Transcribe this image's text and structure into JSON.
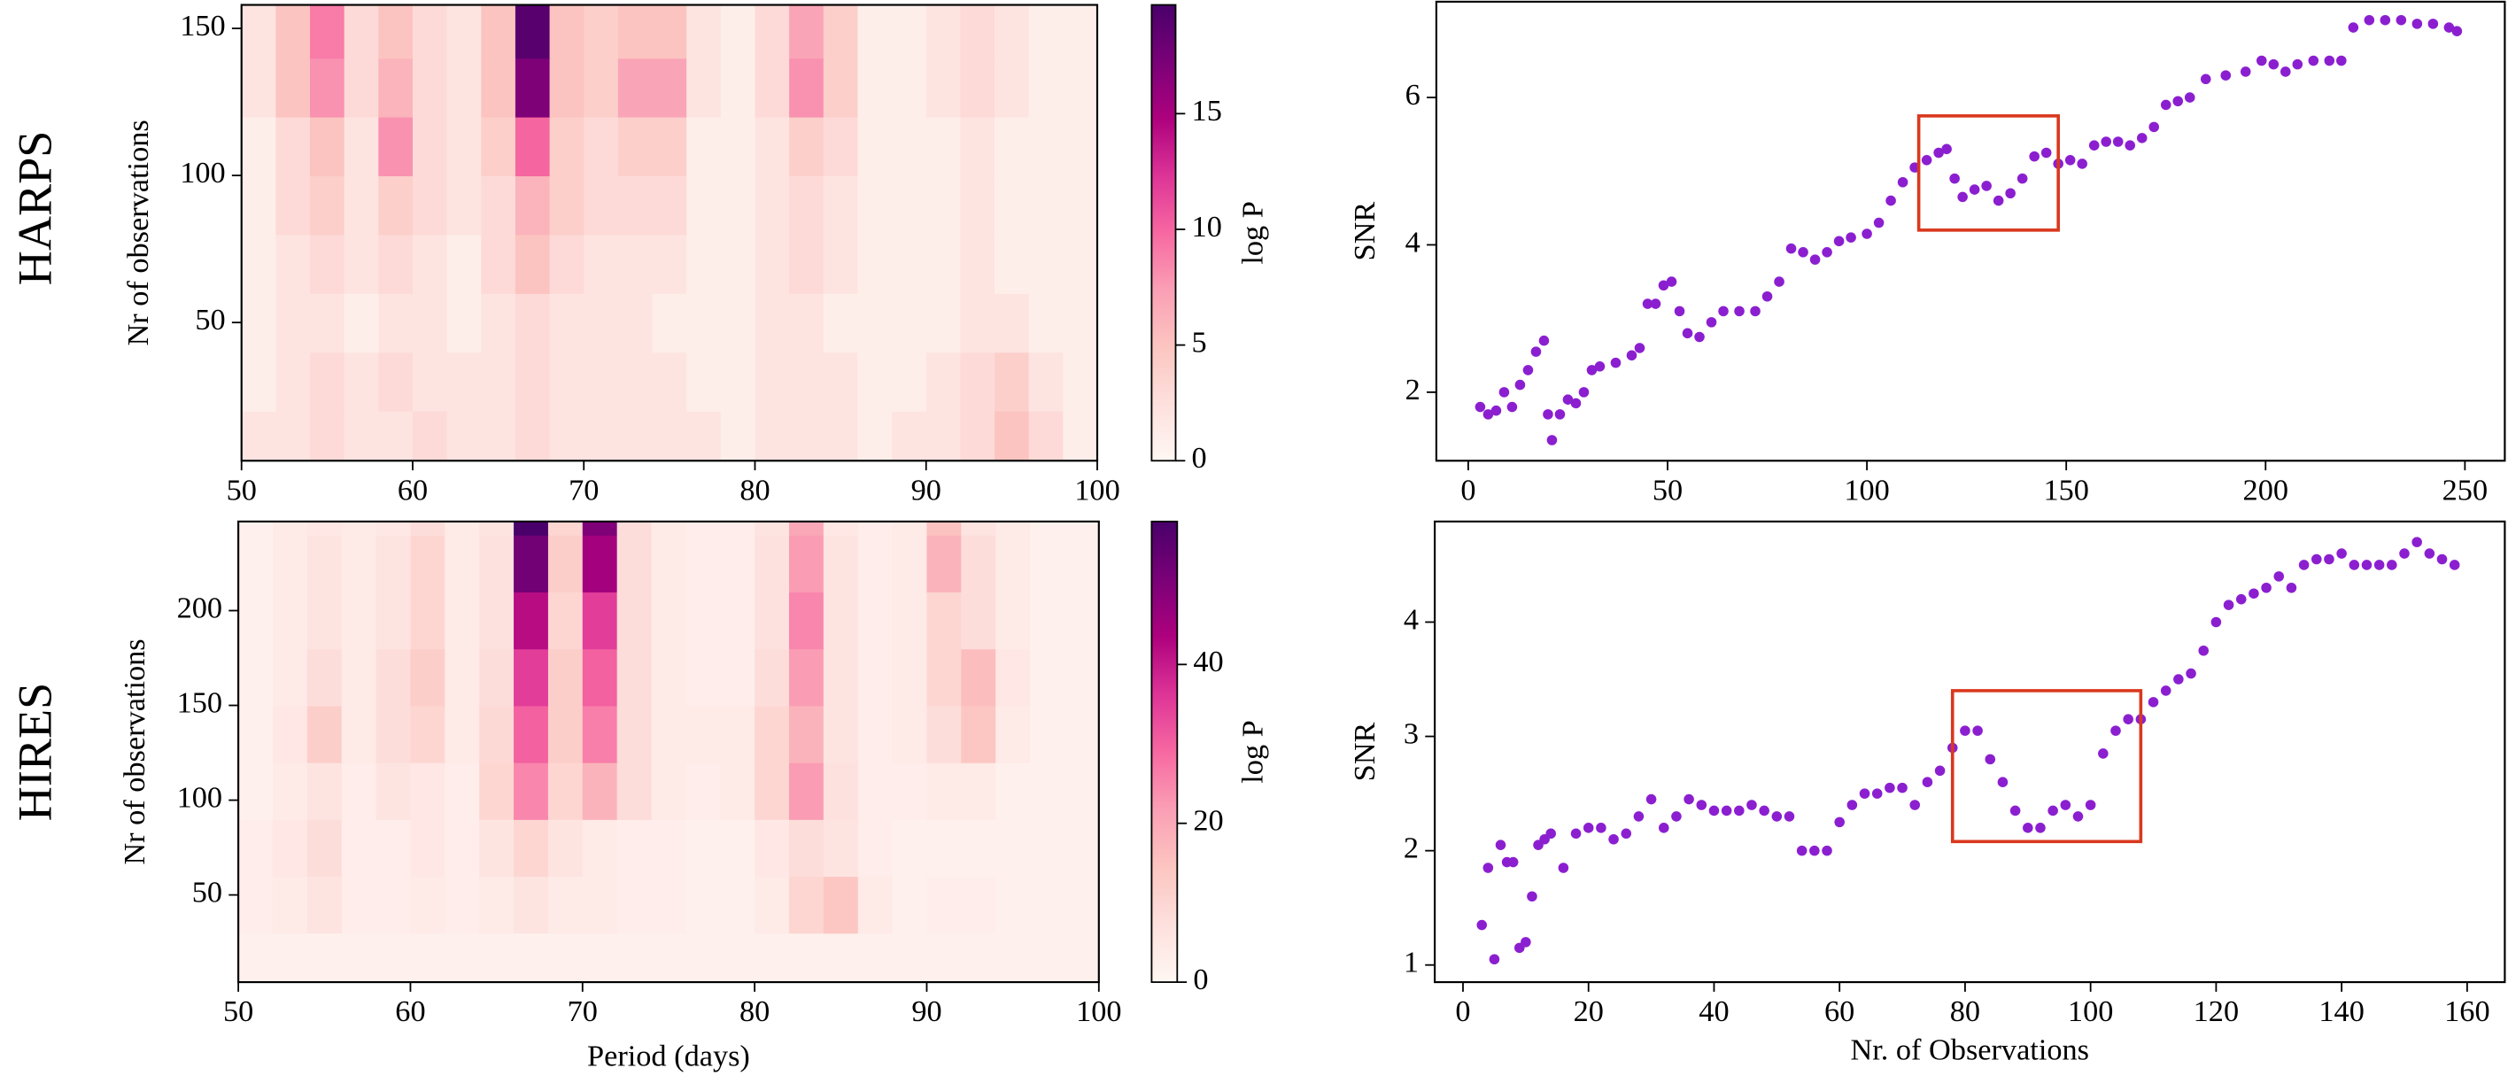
{
  "panel_labels": [
    "HARPS",
    "HIRES"
  ],
  "chart_data": [
    {
      "type": "heatmap",
      "ylabel": "Nr of observations",
      "colorbar_label": "log P",
      "x": [
        51,
        53,
        55,
        57,
        59,
        61,
        63,
        65,
        67,
        69,
        71,
        73,
        75,
        77,
        79,
        81,
        83,
        85,
        87,
        89,
        91,
        93,
        95,
        97,
        99
      ],
      "y": [
        10,
        30,
        50,
        70,
        90,
        110,
        130,
        150
      ],
      "z": [
        [
          2,
          2,
          3,
          2,
          2,
          3,
          2,
          2,
          3,
          2,
          2,
          2,
          2,
          2,
          1,
          2,
          2,
          2,
          1,
          2,
          2,
          3,
          5,
          3,
          1
        ],
        [
          1,
          2,
          3,
          2,
          3,
          2,
          2,
          2,
          3,
          2,
          2,
          2,
          2,
          1,
          1,
          2,
          2,
          2,
          1,
          1,
          2,
          3,
          4,
          2,
          1
        ],
        [
          1,
          2,
          2,
          1,
          2,
          2,
          1,
          2,
          3,
          2,
          2,
          2,
          1,
          1,
          1,
          2,
          2,
          1,
          1,
          1,
          1,
          2,
          2,
          1,
          1
        ],
        [
          1,
          2,
          3,
          2,
          3,
          2,
          1,
          3,
          5,
          3,
          2,
          2,
          2,
          1,
          1,
          2,
          3,
          2,
          1,
          1,
          1,
          2,
          1,
          1,
          1
        ],
        [
          1,
          3,
          4,
          2,
          4,
          3,
          2,
          3,
          6,
          4,
          3,
          3,
          3,
          1,
          1,
          2,
          3,
          2,
          1,
          1,
          1,
          2,
          1,
          1,
          1
        ],
        [
          1,
          3,
          5,
          2,
          8,
          3,
          2,
          4,
          10,
          4,
          3,
          4,
          4,
          1,
          1,
          2,
          4,
          3,
          1,
          1,
          1,
          2,
          1,
          1,
          1
        ],
        [
          2,
          5,
          8,
          3,
          6,
          3,
          2,
          5,
          17,
          5,
          4,
          7,
          7,
          2,
          1,
          3,
          8,
          4,
          1,
          1,
          2,
          3,
          2,
          1,
          1
        ],
        [
          2,
          5,
          9,
          3,
          5,
          3,
          2,
          5,
          19,
          5,
          4,
          5,
          5,
          2,
          1,
          3,
          7,
          4,
          1,
          1,
          2,
          3,
          2,
          1,
          1
        ]
      ],
      "xlim": [
        50,
        100
      ],
      "xticks": [
        50,
        60,
        70,
        80,
        90,
        100
      ],
      "ylim": [
        3,
        158
      ],
      "yticks": [
        50,
        100,
        150
      ],
      "clim": [
        0,
        19.7
      ],
      "cticks": [
        0,
        5,
        10,
        15
      ],
      "colormap": [
        "#fff7f3",
        "#fde0dd",
        "#fcc5c0",
        "#fa9fb5",
        "#f768a1",
        "#dd3497",
        "#ae017e",
        "#7a0177",
        "#49006a"
      ]
    },
    {
      "type": "heatmap",
      "xlabel": "Period (days)",
      "ylabel": "Nr of observations",
      "colorbar_label": "log P",
      "x": [
        51,
        53,
        55,
        57,
        59,
        61,
        63,
        65,
        67,
        69,
        71,
        73,
        75,
        77,
        79,
        81,
        83,
        85,
        87,
        89,
        91,
        93,
        95,
        97,
        99
      ],
      "y": [
        15,
        45,
        75,
        105,
        135,
        165,
        195,
        225,
        255
      ],
      "z": [
        [
          2,
          2,
          2,
          2,
          2,
          2,
          2,
          2,
          2,
          2,
          2,
          2,
          2,
          2,
          2,
          2,
          2,
          2,
          2,
          2,
          2,
          2,
          2,
          2,
          2
        ],
        [
          3,
          4,
          6,
          3,
          3,
          4,
          3,
          4,
          6,
          4,
          4,
          3,
          3,
          2,
          2,
          4,
          10,
          14,
          4,
          2,
          3,
          3,
          2,
          2,
          2
        ],
        [
          3,
          5,
          8,
          3,
          3,
          5,
          3,
          6,
          10,
          6,
          4,
          3,
          3,
          2,
          2,
          5,
          8,
          6,
          3,
          2,
          2,
          2,
          2,
          2,
          2
        ],
        [
          2,
          4,
          6,
          3,
          6,
          5,
          3,
          10,
          25,
          10,
          18,
          8,
          4,
          3,
          4,
          10,
          22,
          7,
          3,
          3,
          4,
          4,
          2,
          2,
          2
        ],
        [
          2,
          5,
          12,
          4,
          8,
          10,
          4,
          9,
          30,
          12,
          26,
          8,
          4,
          4,
          4,
          10,
          18,
          6,
          3,
          4,
          8,
          14,
          4,
          2,
          2
        ],
        [
          2,
          4,
          8,
          4,
          8,
          12,
          4,
          8,
          35,
          12,
          30,
          8,
          4,
          3,
          3,
          8,
          22,
          6,
          3,
          4,
          10,
          16,
          5,
          2,
          2
        ],
        [
          2,
          4,
          6,
          4,
          6,
          10,
          4,
          7,
          42,
          10,
          35,
          8,
          4,
          3,
          3,
          7,
          25,
          6,
          3,
          4,
          10,
          8,
          4,
          2,
          2
        ],
        [
          2,
          4,
          6,
          4,
          6,
          10,
          4,
          7,
          52,
          12,
          45,
          8,
          4,
          3,
          3,
          7,
          22,
          6,
          3,
          4,
          18,
          8,
          4,
          2,
          2
        ],
        [
          2,
          4,
          5,
          4,
          5,
          8,
          4,
          6,
          58,
          10,
          50,
          8,
          4,
          3,
          3,
          6,
          20,
          5,
          3,
          4,
          15,
          6,
          4,
          2,
          2
        ]
      ],
      "xlim": [
        50,
        100
      ],
      "xticks": [
        50,
        60,
        70,
        80,
        90,
        100
      ],
      "ylim": [
        4,
        247
      ],
      "yticks": [
        50,
        100,
        150,
        200
      ],
      "clim": [
        0,
        58
      ],
      "cticks": [
        0,
        20,
        40
      ],
      "colormap": [
        "#fff7f3",
        "#fde0dd",
        "#fcc5c0",
        "#fa9fb5",
        "#f768a1",
        "#dd3497",
        "#ae017e",
        "#7a0177",
        "#49006a"
      ]
    },
    {
      "type": "scatter",
      "ylabel": "SNR",
      "color": "#8b1fd0",
      "x": [
        3,
        5,
        7,
        9,
        11,
        13,
        15,
        17,
        19,
        20,
        21,
        23,
        25,
        27,
        29,
        31,
        33,
        37,
        41,
        43,
        45,
        47,
        49,
        51,
        53,
        55,
        58,
        61,
        64,
        68,
        72,
        75,
        78,
        81,
        84,
        87,
        90,
        93,
        96,
        100,
        103,
        106,
        109,
        112,
        115,
        118,
        120,
        122,
        124,
        127,
        130,
        133,
        136,
        139,
        142,
        145,
        148,
        151,
        154,
        157,
        160,
        163,
        166,
        169,
        172,
        175,
        178,
        181,
        185,
        190,
        195,
        199,
        202,
        205,
        208,
        212,
        216,
        219,
        222,
        226,
        230,
        234,
        238,
        242,
        246,
        248
      ],
      "values": [
        1.8,
        1.7,
        1.75,
        2.0,
        1.8,
        2.1,
        2.3,
        2.55,
        2.7,
        1.7,
        1.35,
        1.7,
        1.9,
        1.85,
        2.0,
        2.3,
        2.35,
        2.4,
        2.5,
        2.6,
        3.2,
        3.2,
        3.45,
        3.5,
        3.1,
        2.8,
        2.75,
        2.95,
        3.1,
        3.1,
        3.1,
        3.3,
        3.5,
        3.95,
        3.9,
        3.8,
        3.9,
        4.05,
        4.1,
        4.15,
        4.3,
        4.6,
        4.85,
        5.05,
        5.15,
        5.25,
        5.3,
        4.9,
        4.65,
        4.75,
        4.8,
        4.6,
        4.7,
        4.9,
        5.2,
        5.25,
        5.1,
        5.15,
        5.1,
        5.35,
        5.4,
        5.4,
        5.35,
        5.45,
        5.6,
        5.9,
        5.95,
        6.0,
        6.25,
        6.3,
        6.35,
        6.5,
        6.45,
        6.35,
        6.45,
        6.5,
        6.5,
        6.5,
        6.95,
        7.05,
        7.05,
        7.05,
        7.0,
        7.0,
        6.95,
        6.9
      ],
      "xlim": [
        -8,
        260
      ],
      "xticks": [
        0,
        50,
        100,
        150,
        200,
        250
      ],
      "ylim": [
        1.07,
        7.3
      ],
      "yticks": [
        2,
        4,
        6
      ],
      "highlight": {
        "color": "#d9381e",
        "x": [
          113,
          148
        ],
        "y": [
          4.2,
          5.75
        ]
      }
    },
    {
      "type": "scatter",
      "xlabel": "Nr. of Observations",
      "ylabel": "SNR",
      "color": "#8b1fd0",
      "x": [
        3,
        4,
        5,
        6,
        7,
        8,
        9,
        10,
        11,
        12,
        13,
        14,
        16,
        18,
        20,
        22,
        24,
        26,
        28,
        30,
        32,
        34,
        36,
        38,
        40,
        42,
        44,
        46,
        48,
        50,
        52,
        54,
        56,
        58,
        60,
        62,
        64,
        66,
        68,
        70,
        72,
        74,
        76,
        78,
        80,
        82,
        84,
        86,
        88,
        90,
        92,
        94,
        96,
        98,
        100,
        102,
        104,
        106,
        108,
        110,
        112,
        114,
        116,
        118,
        120,
        122,
        124,
        126,
        128,
        130,
        132,
        134,
        136,
        138,
        140,
        142,
        144,
        146,
        148,
        150,
        152,
        154,
        156,
        158
      ],
      "values": [
        1.35,
        1.85,
        1.05,
        2.05,
        1.9,
        1.9,
        1.15,
        1.2,
        1.6,
        2.05,
        2.1,
        2.15,
        1.85,
        2.15,
        2.2,
        2.2,
        2.1,
        2.15,
        2.3,
        2.45,
        2.2,
        2.3,
        2.45,
        2.4,
        2.35,
        2.35,
        2.35,
        2.4,
        2.35,
        2.3,
        2.3,
        2.0,
        2.0,
        2.0,
        2.25,
        2.4,
        2.5,
        2.5,
        2.55,
        2.55,
        2.4,
        2.6,
        2.7,
        2.9,
        3.05,
        3.05,
        2.8,
        2.6,
        2.35,
        2.2,
        2.2,
        2.35,
        2.4,
        2.3,
        2.4,
        2.85,
        3.05,
        3.15,
        3.15,
        3.3,
        3.4,
        3.5,
        3.55,
        3.75,
        4.0,
        4.15,
        4.2,
        4.25,
        4.3,
        4.4,
        4.3,
        4.5,
        4.55,
        4.55,
        4.6,
        4.5,
        4.5,
        4.5,
        4.5,
        4.6,
        4.7,
        4.6,
        4.55,
        4.5
      ],
      "xlim": [
        -4.5,
        166
      ],
      "xticks": [
        0,
        20,
        40,
        60,
        80,
        100,
        120,
        140,
        160
      ],
      "ylim": [
        0.85,
        4.88
      ],
      "yticks": [
        1,
        2,
        3,
        4
      ],
      "highlight": {
        "color": "#d9381e",
        "x": [
          78,
          108
        ],
        "y": [
          2.08,
          3.4
        ]
      }
    }
  ]
}
